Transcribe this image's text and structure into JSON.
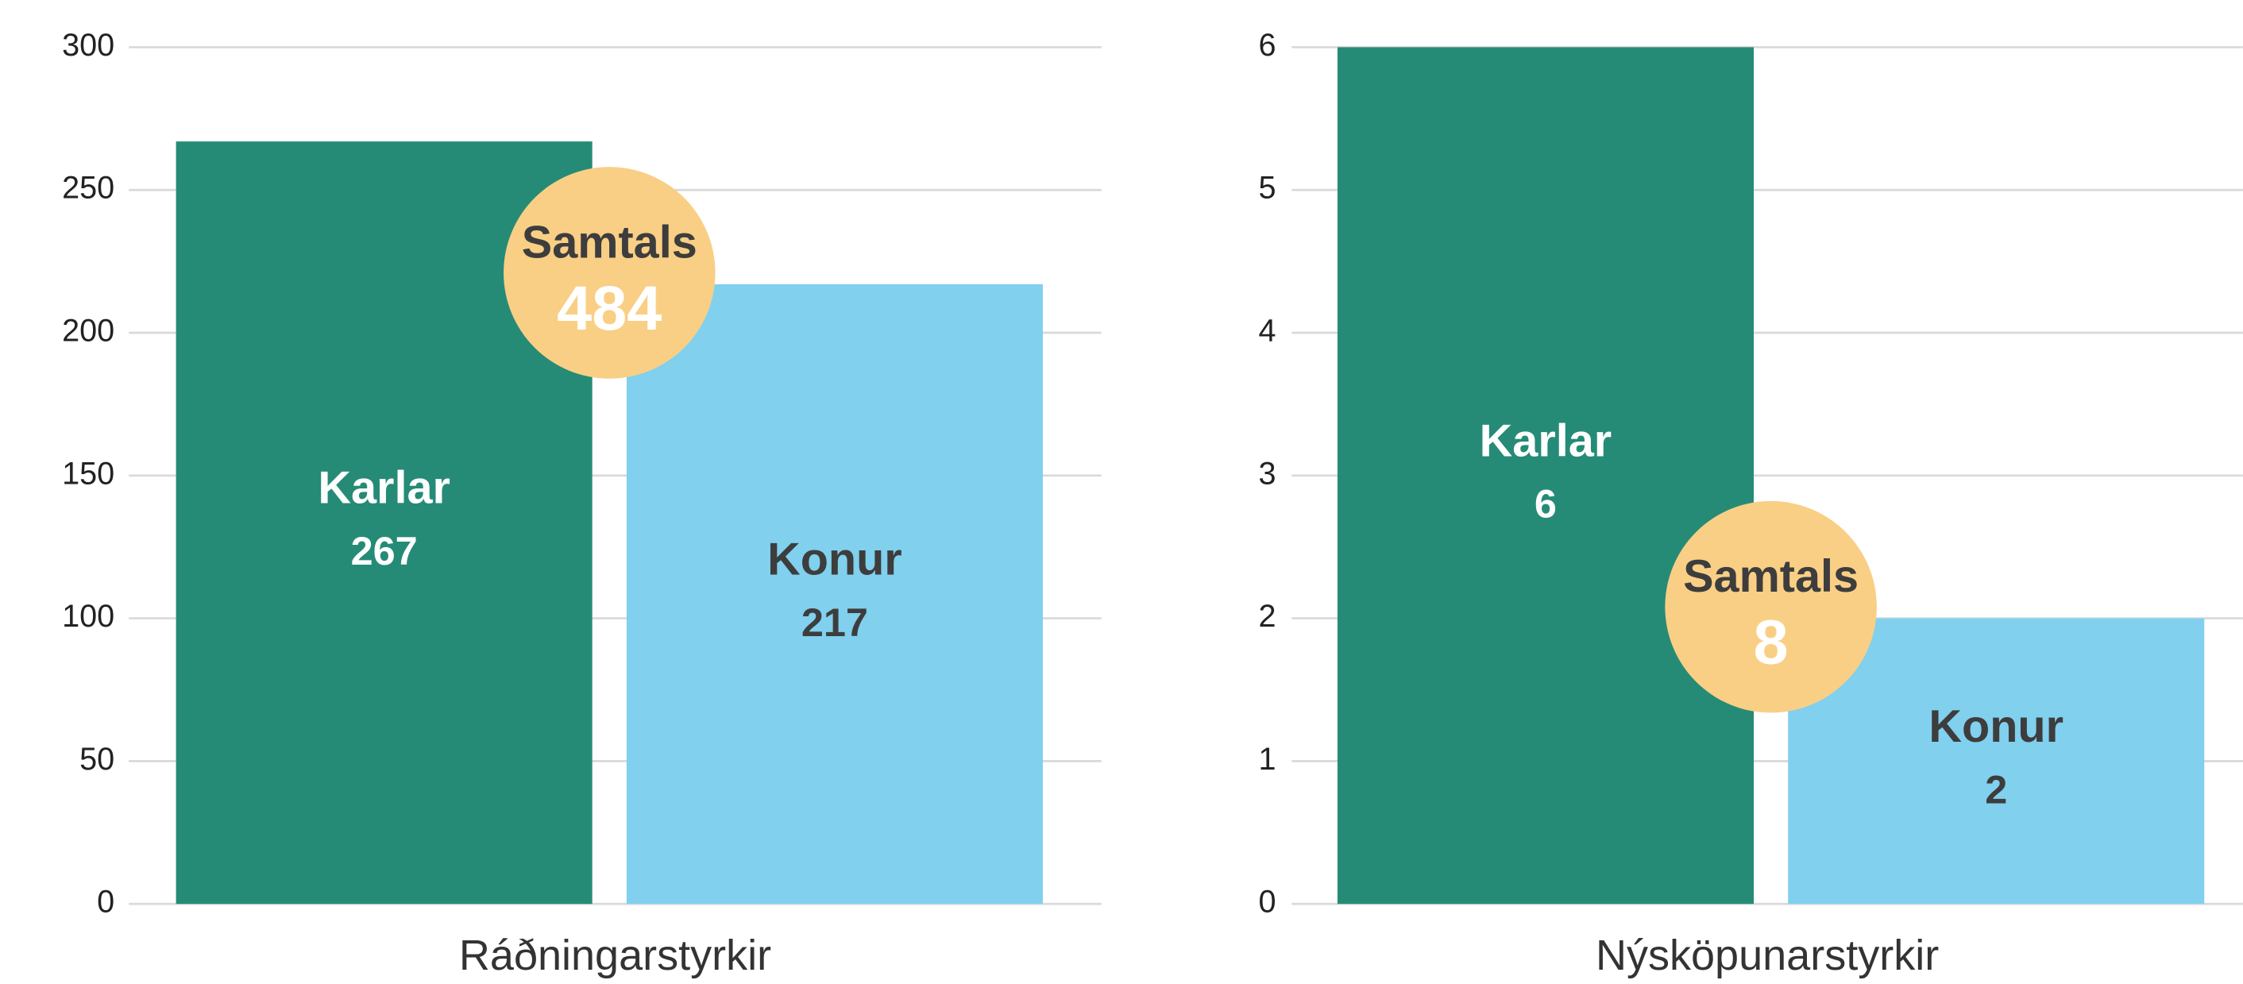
{
  "chart_data": [
    {
      "type": "bar",
      "xlabel": "Ráðningarstyrkir",
      "categories": [
        "Karlar",
        "Konur"
      ],
      "values": [
        267,
        217
      ],
      "colors": [
        "#258b76",
        "#80d0ee"
      ],
      "ylim": [
        0,
        300
      ],
      "yticks": [
        0,
        50,
        100,
        150,
        200,
        250,
        300
      ],
      "grid": true,
      "total": {
        "label": "Samtals",
        "value": 484
      }
    },
    {
      "type": "bar",
      "xlabel": "Nýsköpunarstyrkir",
      "categories": [
        "Karlar",
        "Konur"
      ],
      "values": [
        6,
        2
      ],
      "colors": [
        "#258b76",
        "#80d0ee"
      ],
      "ylim": [
        0,
        6
      ],
      "yticks": [
        0,
        1,
        2,
        3,
        4,
        5,
        6
      ],
      "grid": true,
      "total": {
        "label": "Samtals",
        "value": 8
      }
    }
  ]
}
